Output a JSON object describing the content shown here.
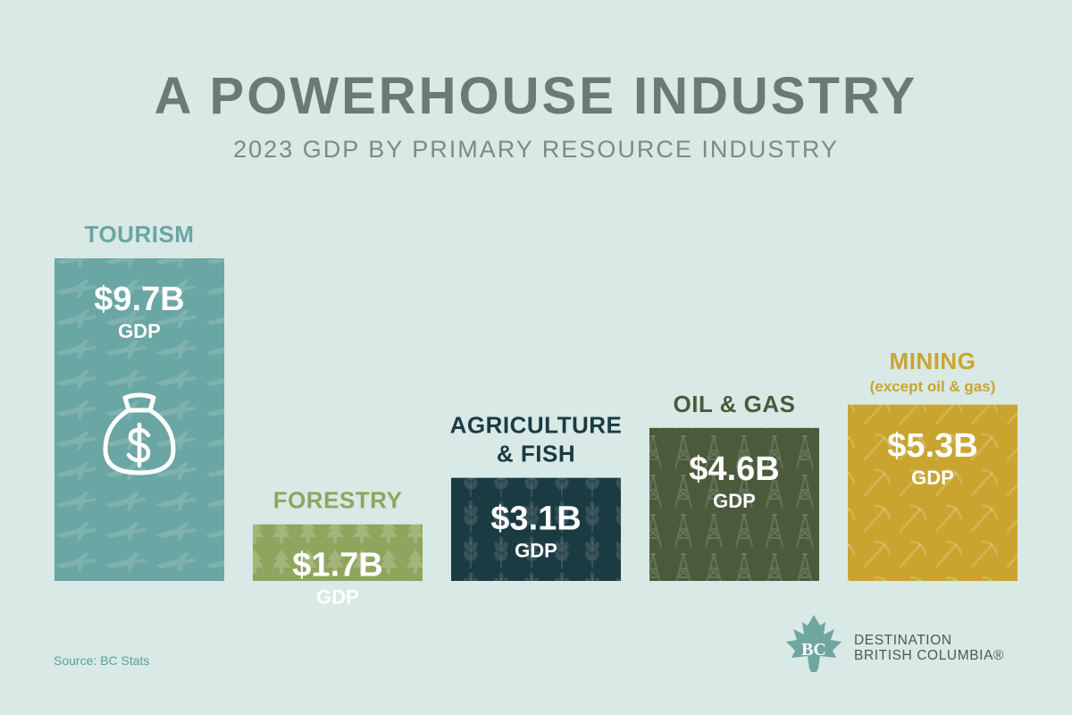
{
  "header": {
    "title": "A POWERHOUSE INDUSTRY",
    "subtitle": "2023 GDP BY PRIMARY RESOURCE INDUSTRY"
  },
  "chart_data": {
    "type": "bar",
    "title": "A POWERHOUSE INDUSTRY",
    "subtitle": "2023 GDP BY PRIMARY RESOURCE INDUSTRY",
    "unit": "GDP",
    "ylim": [
      0,
      9.7
    ],
    "grid": false,
    "legend": "none",
    "bars": [
      {
        "category": "TOURISM",
        "category_line2": "",
        "value": 9.7,
        "value_label": "$9.7B",
        "unit_label": "GDP",
        "color": "#6aa6a3",
        "pattern": "plane",
        "icon": "money-bag-icon"
      },
      {
        "category": "FORESTRY",
        "category_line2": "",
        "value": 1.7,
        "value_label": "$1.7B",
        "unit_label": "GDP",
        "color": "#8fa55e",
        "pattern": "tree",
        "icon": ""
      },
      {
        "category": "AGRICULTURE",
        "category_line2": "& FISH",
        "value": 3.1,
        "value_label": "$3.1B",
        "unit_label": "GDP",
        "color": "#1b3b42",
        "pattern": "wheat",
        "icon": ""
      },
      {
        "category": "OIL & GAS",
        "category_line2": "",
        "value": 4.6,
        "value_label": "$4.6B",
        "unit_label": "GDP",
        "color": "#4a5a3b",
        "pattern": "derrick",
        "icon": ""
      },
      {
        "category": "MINING",
        "category_line2": "(except oil & gas)",
        "value": 5.3,
        "value_label": "$5.3B",
        "unit_label": "GDP",
        "color": "#c9a530",
        "pattern": "pick",
        "icon": ""
      }
    ],
    "category_colors": [
      "#6aa6a3",
      "#8fa55e",
      "#1b3b42",
      "#4a5a3b",
      "#c9a530"
    ]
  },
  "footer": {
    "source": "Source: BC Stats",
    "logo_mark_text": "BC",
    "logo_line1": "DESTINATION",
    "logo_line2": "BRITISH COLUMBIA®"
  },
  "colors": {
    "background": "#d8e9e6",
    "title": "#6b7b74",
    "subtitle": "#7d8a86",
    "logo": "#6fa6a0"
  }
}
